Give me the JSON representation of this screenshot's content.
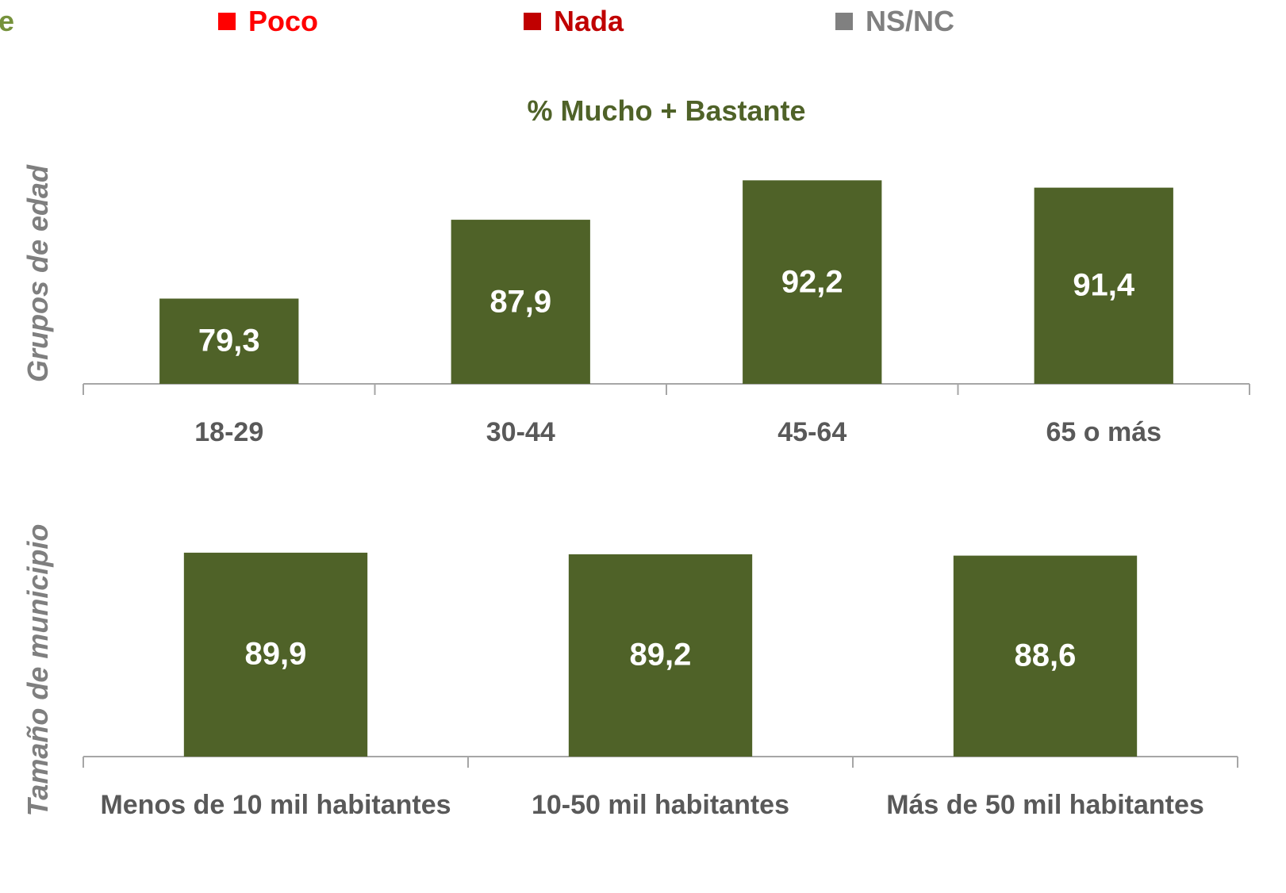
{
  "legend": [
    {
      "name": "e",
      "color": "#76923c"
    },
    {
      "name": "Poco",
      "color": "#ff0000"
    },
    {
      "name": "Nada",
      "color": "#c00000"
    },
    {
      "name": "NS/NC",
      "color": "#808080"
    }
  ],
  "chart_data": [
    {
      "type": "bar",
      "title": "% Mucho + Bastante",
      "y_label": "Grupos de edad",
      "categories": [
        "18-29",
        "30-44",
        "45-64",
        "65 o más"
      ],
      "values": [
        79.3,
        87.9,
        92.2,
        91.4
      ],
      "value_labels": [
        "79,3",
        "87,9",
        "92,2",
        "91,4"
      ],
      "color": "#4f6228",
      "ylim": [
        70,
        95
      ]
    },
    {
      "type": "bar",
      "y_label": "Tamaño de municipio",
      "categories": [
        "Menos de 10 mil habitantes",
        "10-50 mil habitantes",
        "Más de 50 mil habitantes"
      ],
      "values": [
        89.9,
        89.2,
        88.6
      ],
      "value_labels": [
        "89,9",
        "89,2",
        "88,6"
      ],
      "color": "#4f6228",
      "ylim": [
        0,
        100
      ]
    }
  ]
}
